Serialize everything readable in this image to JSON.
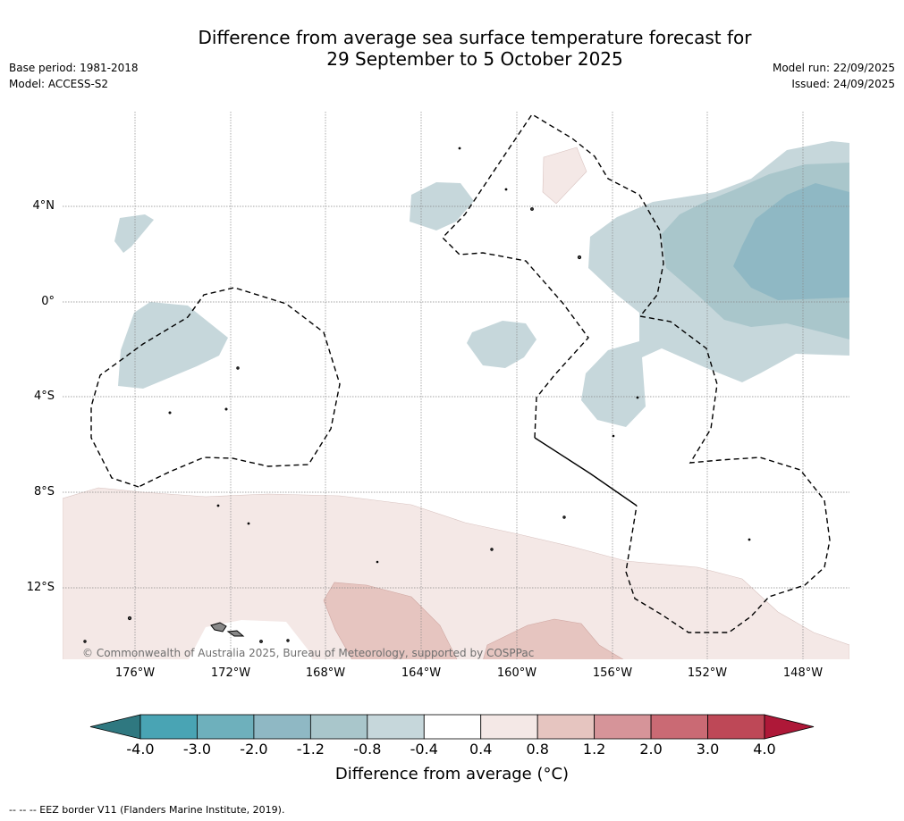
{
  "title": {
    "line1": "Difference from average sea surface temperature forecast for",
    "line2": "29 September to 5 October 2025"
  },
  "meta": {
    "base_period": "Base period: 1981-2018",
    "model": "Model: ACCESS-S2",
    "model_run": "Model run: 22/09/2025",
    "issued": "Issued: 24/09/2025"
  },
  "map": {
    "lat_labels": [
      "4°N",
      "0°",
      "4°S",
      "8°S",
      "12°S"
    ],
    "lon_labels": [
      "176°W",
      "172°W",
      "168°W",
      "164°W",
      "160°W",
      "156°W",
      "152°W",
      "148°W"
    ],
    "copyright": "© Commonwealth of Australia 2025, Bureau of Meteorology, supported by COSPPac"
  },
  "colorbar": {
    "ticks": [
      "-4.0",
      "-3.0",
      "-2.0",
      "-1.2",
      "-0.8",
      "-0.4",
      "0.4",
      "0.8",
      "1.2",
      "2.0",
      "3.0",
      "4.0"
    ],
    "colors": [
      "#49a4b4",
      "#6eb0bc",
      "#8fb8c4",
      "#a9c6cb",
      "#c6d7db",
      "#ffffff",
      "#f4e8e6",
      "#e6c5c0",
      "#d69499",
      "#ca6a74",
      "#be4857"
    ],
    "under_color": "#2f7880",
    "over_color": "#ae1838",
    "label": "Difference from average (°C)"
  },
  "footer": {
    "legend_text": "-- -- -- EEZ border V11 (Flanders Marine Institute, 2019)."
  }
}
